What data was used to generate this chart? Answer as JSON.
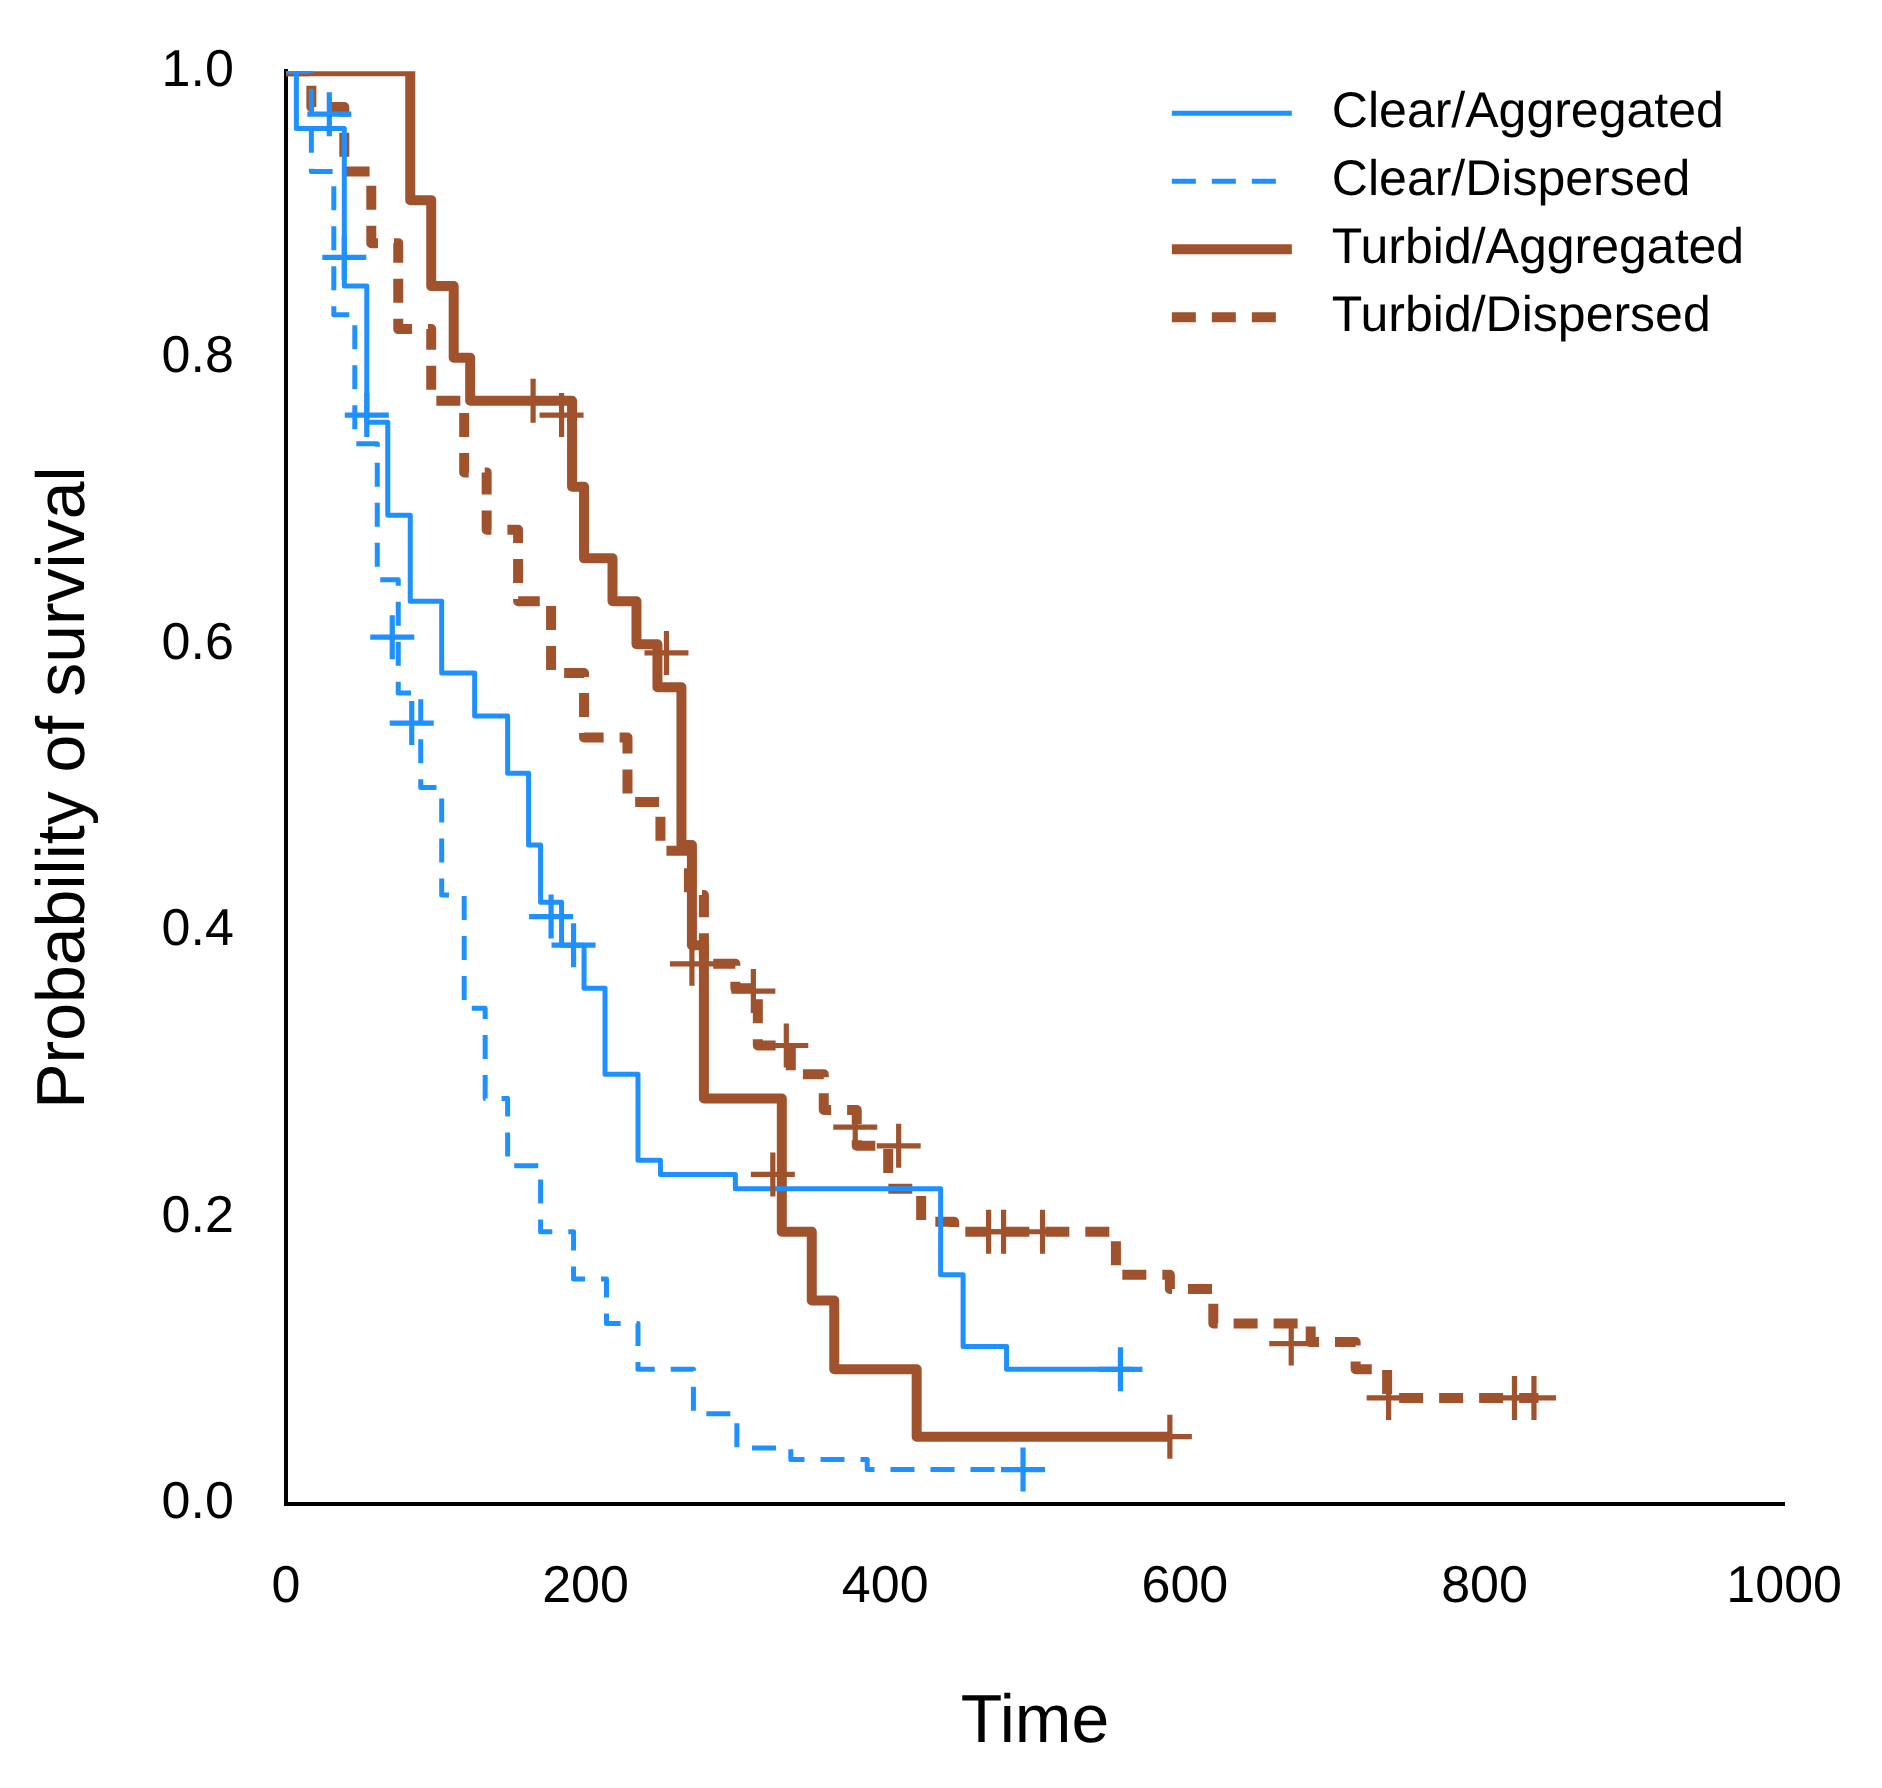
{
  "chart_data": {
    "type": "step",
    "xlabel": "Time",
    "ylabel": "Probability of survival",
    "xlim": [
      0,
      1000
    ],
    "xticks": [
      0,
      200,
      400,
      600,
      800,
      1000
    ],
    "ylim": [
      0,
      1
    ],
    "yticks": [
      {
        "value": 0,
        "label": "0.0"
      },
      {
        "value": 0.2,
        "label": "0.2"
      },
      {
        "value": 0.4,
        "label": "0.4"
      },
      {
        "value": 0.6,
        "label": "0.6"
      },
      {
        "value": 0.8,
        "label": "0.8"
      },
      {
        "value": 1,
        "label": "1.0"
      }
    ],
    "grid": false,
    "legend": "top right",
    "series": [
      {
        "name": "Clear/Aggregated",
        "color": "#1e90ff",
        "line_style": "solid",
        "x": [
          0,
          7,
          39,
          54,
          68,
          83,
          104,
          126,
          148,
          162,
          170,
          184,
          199,
          213,
          235,
          250,
          300,
          430,
          437,
          452,
          481,
          565
        ],
        "values": [
          1,
          0.96,
          0.85,
          0.755,
          0.69,
          0.63,
          0.58,
          0.55,
          0.51,
          0.46,
          0.42,
          0.39,
          0.36,
          0.3,
          0.24,
          0.23,
          0.22,
          0.22,
          0.16,
          0.11,
          0.094,
          0.094
        ]
      },
      {
        "name": "Clear/Dispersed",
        "color": "#1e90ff",
        "line_style": "dashed",
        "x": [
          2,
          17,
          32,
          46,
          61,
          75,
          90,
          104,
          119,
          133,
          148,
          170,
          192,
          214,
          235,
          272,
          301,
          337,
          388,
          500
        ],
        "values": [
          1,
          0.93,
          0.83,
          0.74,
          0.645,
          0.566,
          0.5,
          0.425,
          0.346,
          0.283,
          0.236,
          0.19,
          0.157,
          0.126,
          0.094,
          0.063,
          0.039,
          0.031,
          0.024,
          0.024
        ]
      },
      {
        "name": "Turbid/Aggregated",
        "color": "#a0522d",
        "line_style": "solid",
        "x": [
          0,
          68,
          83,
          97,
          112,
          123,
          184,
          191,
          199,
          218,
          234,
          248,
          264,
          271,
          279,
          325,
          331,
          351,
          366,
          417,
          421,
          590
        ],
        "values": [
          1,
          1,
          0.91,
          0.85,
          0.8,
          0.77,
          0.77,
          0.71,
          0.66,
          0.63,
          0.6,
          0.57,
          0.46,
          0.39,
          0.283,
          0.283,
          0.19,
          0.142,
          0.094,
          0.094,
          0.047,
          0.047
        ]
      },
      {
        "name": "Turbid/Dispersed",
        "color": "#a0522d",
        "line_style": "dashed",
        "x": [
          0,
          17,
          39,
          57,
          75,
          97,
          119,
          134,
          155,
          177,
          199,
          228,
          250,
          269,
          279,
          300,
          315,
          337,
          359,
          381,
          402,
          424,
          446,
          554,
          590,
          619,
          684,
          714,
          735,
          836
        ],
        "values": [
          1,
          0.975,
          0.93,
          0.88,
          0.82,
          0.77,
          0.72,
          0.68,
          0.63,
          0.58,
          0.535,
          0.49,
          0.456,
          0.425,
          0.377,
          0.36,
          0.32,
          0.3,
          0.275,
          0.25,
          0.22,
          0.197,
          0.19,
          0.16,
          0.15,
          0.126,
          0.113,
          0.094,
          0.074,
          0.074
        ]
      },
      {
        "type": "scatter",
        "marker": "cross",
        "color": "#1e90ff",
        "x": [
          54,
          177,
          192,
          557
        ],
        "values": [
          0.76,
          0.41,
          0.39,
          0.094
        ]
      },
      {
        "type": "scatter",
        "marker": "cross",
        "color": "#1e90ff",
        "x": [
          29,
          39,
          71,
          84,
          492
        ],
        "values": [
          0.97,
          0.87,
          0.605,
          0.545,
          0.024
        ]
      },
      {
        "type": "scatter",
        "marker": "cross",
        "color": "#a0522d",
        "x": [
          165,
          184,
          254,
          325,
          590
        ],
        "values": [
          0.77,
          0.76,
          0.594,
          0.23,
          0.047
        ]
      },
      {
        "type": "scatter",
        "marker": "cross",
        "color": "#a0522d",
        "x": [
          271,
          312,
          334,
          380,
          409,
          469,
          479,
          505,
          671,
          736,
          820,
          833
        ],
        "values": [
          0.377,
          0.358,
          0.32,
          0.263,
          0.25,
          0.19,
          0.19,
          0.19,
          0.112,
          0.074,
          0.074,
          0.074
        ]
      }
    ]
  }
}
